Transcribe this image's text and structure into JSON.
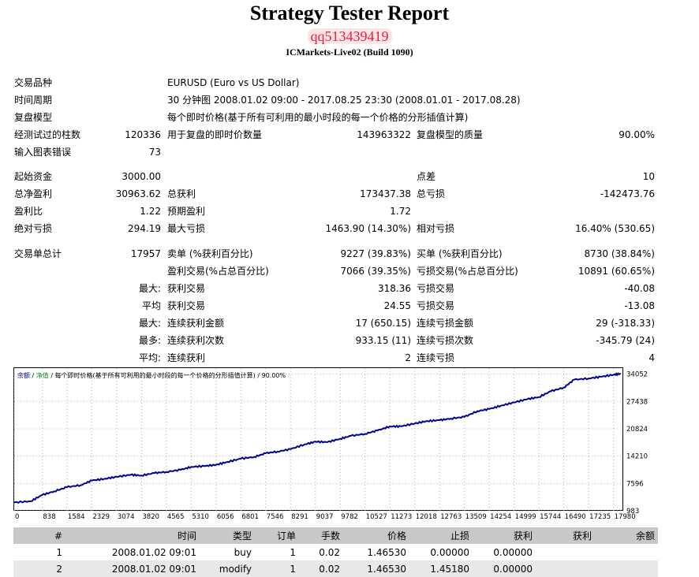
{
  "header": {
    "title": "Strategy Tester Report",
    "account": "qq513439419",
    "server": "ICMarkets-Live02 (Build 1090)"
  },
  "info": {
    "symbol_label": "交易品种",
    "symbol_value": "EURUSD (Euro vs US Dollar)",
    "period_label": "时间周期",
    "period_value": "30 分钟图 2008.01.02 09:00 - 2017.08.25 23:30 (2008.01.01 - 2017.08.28)",
    "model_label": "复盘模型",
    "model_value": "每个即时价格(基于所有可利用的最小时段的每一个价格的分形插值计算)",
    "bars_label": "经测试过的柱数",
    "bars_value": "120336",
    "ticks_label": "用于复盘的即时价数量",
    "ticks_value": "143963322",
    "quality_label": "复盘模型的质量",
    "quality_value": "90.00%",
    "errors_label": "输入图表错误",
    "errors_value": "73"
  },
  "stats": {
    "deposit_label": "起始资金",
    "deposit_value": "3000.00",
    "spread_label": "点差",
    "spread_value": "10",
    "net_label": "总净盈利",
    "net_value": "30963.62",
    "gross_profit_label": "总获利",
    "gross_profit_value": "173437.38",
    "gross_loss_label": "总亏损",
    "gross_loss_value": "-142473.76",
    "pf_label": "盈利比",
    "pf_value": "1.22",
    "payoff_label": "预期盈利",
    "payoff_value": "1.72",
    "abs_dd_label": "绝对亏损",
    "abs_dd_value": "294.19",
    "max_dd_label": "最大亏损",
    "max_dd_value": "1463.90 (14.30%)",
    "rel_dd_label": "相对亏损",
    "rel_dd_value": "16.40% (530.65)",
    "total_trades_label": "交易单总计",
    "total_trades_value": "17957",
    "short_label": "卖单 (%获利百分比)",
    "short_value": "9227 (39.83%)",
    "long_label": "买单 (%获利百分比)",
    "long_value": "8730 (38.84%)",
    "profit_trades_label": "盈利交易(%占总百分比)",
    "profit_trades_value": "7066 (39.35%)",
    "loss_trades_label": "亏损交易(%占总百分比)",
    "loss_trades_value": "10891 (60.65%)",
    "largest_prefix": "最大:",
    "largest_profit_label": "获利交易",
    "largest_profit_value": "318.36",
    "largest_loss_label": "亏损交易",
    "largest_loss_value": "-40.08",
    "average_prefix": "平均",
    "average_profit_label": "获利交易",
    "average_profit_value": "24.55",
    "average_loss_label": "亏损交易",
    "average_loss_value": "-13.08",
    "max_consec_prefix": "最大:",
    "max_consec_wins_label": "连续获利金额",
    "max_consec_wins_value": "17 (650.15)",
    "max_consec_losses_label": "连续亏损金额",
    "max_consec_losses_value": "29 (-318.33)",
    "maximal_prefix": "最多:",
    "maximal_profit_label": "连续获利次数",
    "maximal_profit_value": "933.15 (11)",
    "maximal_loss_label": "连续亏损次数",
    "maximal_loss_value": "-345.79 (24)",
    "avg_consec_prefix": "平均:",
    "avg_consec_wins_label": "连续获利",
    "avg_consec_wins_value": "2",
    "avg_consec_losses_label": "连续亏损",
    "avg_consec_losses_value": "4"
  },
  "chart_data": {
    "type": "line",
    "title_balance": "余额",
    "title_sep1": " / ",
    "title_equity": "净值",
    "title_sep2": " / ",
    "title_model": "每个即时价格(基于所有可利用的最小时段的每一个价格的分形插值计算)",
    "title_sep3": " / ",
    "title_quality": "90.00%",
    "x_ticks": [
      0,
      838,
      1584,
      2329,
      3074,
      3820,
      4565,
      5310,
      6056,
      6801,
      7546,
      8291,
      9037,
      9782,
      10527,
      11273,
      12018,
      12763,
      13509,
      14254,
      14999,
      15744,
      16490,
      17235,
      17980
    ],
    "y_ticks": [
      983,
      7596,
      14210,
      20824,
      27438,
      34052
    ],
    "xlim": [
      0,
      18250
    ],
    "ylim": [
      983,
      35500
    ],
    "grid": true,
    "series": [
      {
        "color": "#00008b",
        "x": [
          0,
          500,
          838,
          1200,
          1584,
          2000,
          2329,
          2700,
          3074,
          3500,
          3820,
          4200,
          4565,
          5000,
          5310,
          5700,
          6056,
          6400,
          6801,
          7200,
          7546,
          7900,
          8291,
          8700,
          9037,
          9400,
          9782,
          10100,
          10527,
          10900,
          11273,
          11600,
          12018,
          12400,
          12763,
          13100,
          13509,
          13900,
          14254,
          14600,
          14999,
          15400,
          15744,
          16100,
          16490,
          16800,
          17235,
          17600,
          17980,
          18200
        ],
        "y": [
          3000,
          3300,
          4800,
          5700,
          6700,
          7200,
          8300,
          8700,
          9200,
          9700,
          9500,
          10100,
          10400,
          10900,
          11600,
          11800,
          12100,
          12800,
          13600,
          14000,
          14900,
          15300,
          15900,
          17000,
          17700,
          17600,
          18400,
          19100,
          19600,
          20400,
          21400,
          21400,
          22100,
          22700,
          22900,
          23300,
          23700,
          25100,
          25600,
          26400,
          27200,
          28000,
          28500,
          29900,
          30800,
          32700,
          33000,
          33400,
          33900,
          34150
        ]
      }
    ]
  },
  "trades": {
    "headers": [
      "#",
      "时间",
      "类型",
      "订单",
      "手数",
      "价格",
      "止损",
      "获利",
      "获利",
      "余额"
    ],
    "rows": [
      [
        "1",
        "2008.01.02 09:01",
        "buy",
        "1",
        "0.02",
        "1.46530",
        "0.00000",
        "0.00000",
        "",
        ""
      ],
      [
        "2",
        "2008.01.02 09:01",
        "modify",
        "1",
        "0.02",
        "1.46530",
        "1.45180",
        "0.00000",
        "",
        ""
      ]
    ]
  }
}
